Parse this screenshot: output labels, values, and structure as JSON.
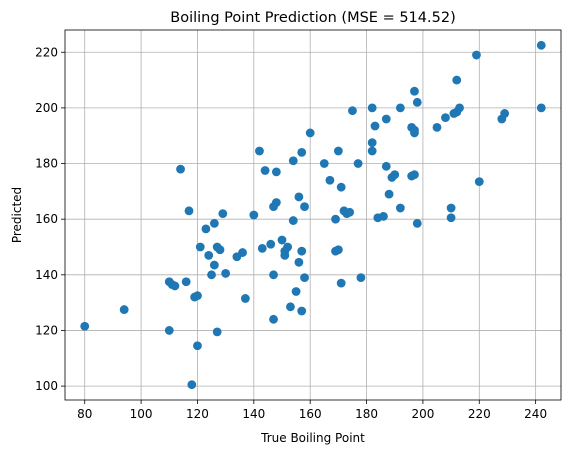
{
  "chart_data": {
    "type": "scatter",
    "title": "Boiling Point Prediction (MSE = 514.52)",
    "xlabel": "True Boiling Point",
    "ylabel": "Predicted",
    "xlim": [
      73,
      249
    ],
    "ylim": [
      95,
      228
    ],
    "xticks": [
      80,
      100,
      120,
      140,
      160,
      180,
      200,
      220,
      240
    ],
    "yticks": [
      100,
      120,
      140,
      160,
      180,
      200,
      220
    ],
    "grid": true,
    "marker_color": "#1f77b4",
    "points": [
      [
        80,
        121.5
      ],
      [
        94,
        127.5
      ],
      [
        110,
        137.5
      ],
      [
        111,
        136.5
      ],
      [
        112,
        136
      ],
      [
        110,
        120
      ],
      [
        114,
        178
      ],
      [
        116,
        137.5
      ],
      [
        117,
        163
      ],
      [
        118,
        100.5
      ],
      [
        119,
        132
      ],
      [
        120,
        132.5
      ],
      [
        120,
        114.5
      ],
      [
        121,
        150
      ],
      [
        123,
        156.5
      ],
      [
        124,
        147
      ],
      [
        125,
        140
      ],
      [
        126,
        158.5
      ],
      [
        126,
        143.5
      ],
      [
        127,
        150
      ],
      [
        128,
        149
      ],
      [
        127,
        119.5
      ],
      [
        129,
        162
      ],
      [
        130,
        140.5
      ],
      [
        134,
        146.5
      ],
      [
        136,
        148
      ],
      [
        137,
        131.5
      ],
      [
        140,
        161.5
      ],
      [
        142,
        184.5
      ],
      [
        143,
        149.5
      ],
      [
        144,
        177.5
      ],
      [
        146,
        151
      ],
      [
        147,
        164.5
      ],
      [
        148,
        166
      ],
      [
        148,
        177
      ],
      [
        147,
        140
      ],
      [
        147,
        124
      ],
      [
        150,
        152.5
      ],
      [
        151,
        147
      ],
      [
        151,
        148.5
      ],
      [
        152,
        150
      ],
      [
        153,
        128.5
      ],
      [
        154,
        159.5
      ],
      [
        154,
        181
      ],
      [
        155,
        134
      ],
      [
        156,
        144.5
      ],
      [
        156,
        168
      ],
      [
        157,
        184
      ],
      [
        157,
        127
      ],
      [
        158,
        139
      ],
      [
        158,
        164.5
      ],
      [
        160,
        191
      ],
      [
        157,
        148.5
      ],
      [
        165,
        180
      ],
      [
        167,
        174
      ],
      [
        169,
        160
      ],
      [
        169,
        148.5
      ],
      [
        170,
        184.5
      ],
      [
        170,
        149
      ],
      [
        171,
        171.5
      ],
      [
        171,
        137
      ],
      [
        172,
        163
      ],
      [
        173,
        162
      ],
      [
        174,
        162.5
      ],
      [
        175,
        199
      ],
      [
        177,
        180
      ],
      [
        178,
        139
      ],
      [
        182,
        200
      ],
      [
        182,
        187.5
      ],
      [
        182,
        184.5
      ],
      [
        183,
        193.5
      ],
      [
        184,
        160.5
      ],
      [
        186,
        161
      ],
      [
        187,
        196
      ],
      [
        187,
        179
      ],
      [
        188,
        169
      ],
      [
        189,
        175
      ],
      [
        190,
        176
      ],
      [
        192,
        200
      ],
      [
        192,
        164
      ],
      [
        196,
        193
      ],
      [
        196,
        175.5
      ],
      [
        197,
        206
      ],
      [
        197,
        192
      ],
      [
        197,
        191
      ],
      [
        197,
        176
      ],
      [
        198,
        202
      ],
      [
        198,
        158.5
      ],
      [
        205,
        193
      ],
      [
        208,
        196.5
      ],
      [
        210,
        164
      ],
      [
        210,
        160.5
      ],
      [
        211,
        198
      ],
      [
        212,
        198.5
      ],
      [
        212,
        210
      ],
      [
        213,
        200
      ],
      [
        219,
        219
      ],
      [
        220,
        173.5
      ],
      [
        228,
        196
      ],
      [
        229,
        198
      ],
      [
        242,
        222.5
      ],
      [
        242,
        200
      ]
    ]
  }
}
